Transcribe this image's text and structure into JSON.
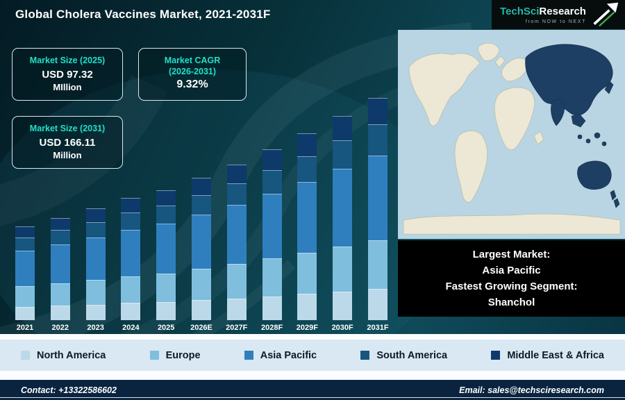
{
  "title": "Global Cholera Vaccines Market, 2021-2031F",
  "logo": {
    "brand_primary": "TechSci",
    "brand_secondary": "Research",
    "tagline": "from NOW to NEXT"
  },
  "info_cards": {
    "size_2025": {
      "heading": "Market Size (2025)",
      "value": "USD 97.32",
      "unit": "MIllion"
    },
    "cagr": {
      "heading_line1": "Market CAGR",
      "heading_line2": "(2026-2031)",
      "value": "9.32%"
    },
    "size_2031": {
      "heading": "Market Size (2031)",
      "value": "USD 166.11",
      "unit": "Million"
    }
  },
  "map_caption": {
    "line1": "Largest Market:",
    "line2": "Asia Pacific",
    "line3": "Fastest Growing Segment:",
    "line4": "Shanchol"
  },
  "footer": {
    "contact": "Contact: +13322586602",
    "email": "Email: sales@techsciresearch.com"
  },
  "colors": {
    "accent_teal": "#21e0c6",
    "card_border": "#d7e8ee",
    "map_ocean": "#b9d4e2",
    "map_land": "#ece8d5",
    "map_highlight": "#1d3f63",
    "legend_bg": "#d9e8f2",
    "footer_bg": "#0a2440",
    "background_dark": "#07303d"
  },
  "chart_data": {
    "type": "bar",
    "stacked": true,
    "title": "Global Cholera Vaccines Market, 2021-2031F",
    "unit": "USD Million",
    "categories": [
      "2021",
      "2022",
      "2023",
      "2024",
      "2025",
      "2026E",
      "2027F",
      "2028F",
      "2029F",
      "2030F",
      "2031F"
    ],
    "series": [
      {
        "name": "North America",
        "color": "#bcd9ea",
        "values": [
          9.8,
          10.7,
          11.7,
          12.8,
          13.6,
          14.9,
          16.3,
          17.9,
          19.5,
          21.4,
          23.3
        ]
      },
      {
        "name": "Europe",
        "color": "#7fbedd",
        "values": [
          15.4,
          16.8,
          18.4,
          20.1,
          21.4,
          23.4,
          25.6,
          28.1,
          30.7,
          33.6,
          36.5
        ]
      },
      {
        "name": "Asia Pacific",
        "color": "#2f7fbe",
        "values": [
          26.6,
          29.1,
          31.7,
          34.8,
          37.0,
          40.5,
          44.3,
          48.5,
          53.0,
          58.0,
          63.1
        ]
      },
      {
        "name": "South America",
        "color": "#16567f",
        "values": [
          9.8,
          10.7,
          11.7,
          12.8,
          13.6,
          14.9,
          16.3,
          17.9,
          19.5,
          21.4,
          23.3
        ]
      },
      {
        "name": "Middle East & Africa",
        "color": "#0d3a6b",
        "values": [
          8.4,
          9.2,
          10.0,
          11.0,
          11.7,
          12.8,
          14.0,
          15.3,
          16.7,
          18.3,
          19.9
        ]
      }
    ],
    "totals_anchor": {
      "2025": 97.32,
      "2031F": 166.11
    },
    "ylim": [
      0,
      170
    ],
    "legend_position": "bottom",
    "grid": false
  }
}
